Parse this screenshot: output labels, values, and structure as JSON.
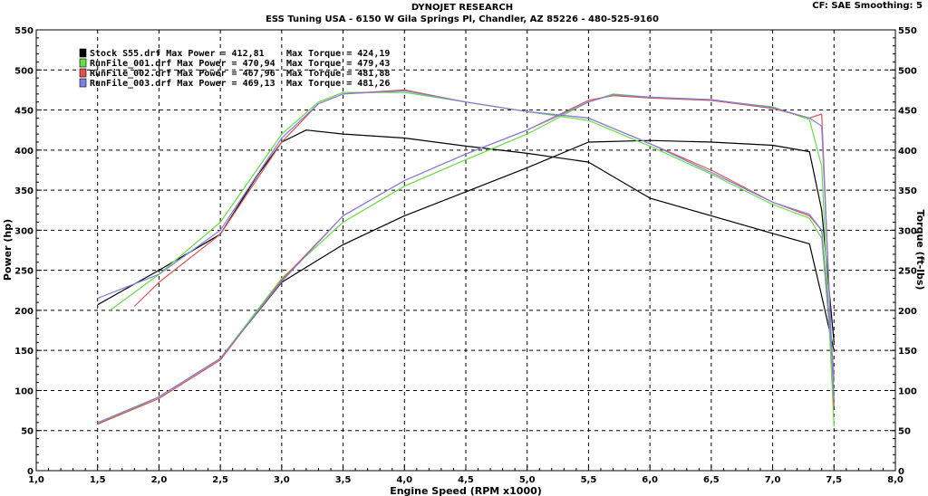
{
  "header": {
    "company": "DYNOJET RESEARCH",
    "shop": "ESS Tuning USA - 6150 W Gila Springs Pl, Chandler, AZ 85226 - 480-525-9160",
    "settings": "CF: SAE  Smoothing: 5"
  },
  "chart_data": {
    "type": "line",
    "title": "DYNOJET RESEARCH",
    "xlabel": "Engine Speed (RPM x1000)",
    "ylabel_left": "Power (hp)",
    "ylabel_right": "Torque (ft-lbs)",
    "xlim": [
      1.0,
      8.0
    ],
    "ylim": [
      0,
      550
    ],
    "xticks": [
      "1,0",
      "1,5",
      "2,0",
      "2,5",
      "3,0",
      "3,5",
      "4,0",
      "4,5",
      "5,0",
      "5,5",
      "6,0",
      "6,5",
      "7,0",
      "7,5",
      "8,0"
    ],
    "yticks": [
      "0",
      "50",
      "100",
      "150",
      "200",
      "250",
      "300",
      "350",
      "400",
      "450",
      "500",
      "550"
    ],
    "grid": true,
    "legend_position": "top-left",
    "legend": [
      {
        "file": "Stock S55.drf",
        "max_power": "412,81",
        "max_torque": "424,19",
        "color": "#000000"
      },
      {
        "file": "RunFile_001.drf",
        "max_power": "470,94",
        "max_torque": "479,43",
        "color": "#66dd44"
      },
      {
        "file": "RunFile_002.drf",
        "max_power": "467,96",
        "max_torque": "481,88",
        "color": "#e05050"
      },
      {
        "file": "RunFile_003.drf",
        "max_power": "469,13",
        "max_torque": "481,26",
        "color": "#8080e0"
      }
    ],
    "series": [
      {
        "name": "Stock S55.drf",
        "metric": "power",
        "color": "#000000",
        "x": [
          1.5,
          2.0,
          2.5,
          3.0,
          3.5,
          4.0,
          4.5,
          5.0,
          5.5,
          6.0,
          6.5,
          7.0,
          7.3,
          7.4,
          7.5
        ],
        "y": [
          58,
          92,
          140,
          235,
          282,
          318,
          348,
          378,
          410,
          412,
          410,
          406,
          398,
          325,
          160
        ]
      },
      {
        "name": "Stock S55.drf",
        "metric": "torque",
        "color": "#000000",
        "x": [
          1.5,
          2.0,
          2.5,
          2.8,
          3.0,
          3.2,
          3.5,
          4.0,
          4.5,
          5.0,
          5.5,
          6.0,
          6.5,
          7.0,
          7.3,
          7.4,
          7.5
        ],
        "y": [
          207,
          250,
          295,
          368,
          410,
          425,
          420,
          415,
          405,
          396,
          385,
          340,
          318,
          296,
          283,
          218,
          150
        ]
      },
      {
        "name": "RunFile_001.drf",
        "metric": "power",
        "color": "#66dd44",
        "x": [
          1.5,
          2.0,
          2.5,
          3.0,
          3.5,
          4.0,
          4.5,
          5.0,
          5.5,
          5.7,
          6.0,
          6.5,
          7.0,
          7.3,
          7.4,
          7.5
        ],
        "y": [
          58,
          92,
          140,
          240,
          310,
          355,
          388,
          420,
          460,
          470,
          466,
          462,
          454,
          438,
          380,
          55
        ]
      },
      {
        "name": "RunFile_001.drf",
        "metric": "torque",
        "color": "#66dd44",
        "x": [
          1.6,
          2.0,
          2.5,
          3.0,
          3.3,
          3.5,
          4.0,
          4.5,
          5.0,
          5.5,
          6.0,
          6.5,
          7.0,
          7.3,
          7.4,
          7.5
        ],
        "y": [
          200,
          245,
          310,
          420,
          460,
          472,
          472,
          460,
          448,
          437,
          405,
          370,
          332,
          315,
          290,
          110
        ]
      },
      {
        "name": "RunFile_002.drf",
        "metric": "power",
        "color": "#e05050",
        "x": [
          1.5,
          2.0,
          2.5,
          3.0,
          3.5,
          4.0,
          4.5,
          5.0,
          5.5,
          5.7,
          6.0,
          6.5,
          7.0,
          7.3,
          7.4,
          7.5
        ],
        "y": [
          58,
          90,
          138,
          238,
          318,
          362,
          395,
          425,
          462,
          468,
          465,
          462,
          452,
          440,
          445,
          80
        ]
      },
      {
        "name": "RunFile_002.drf",
        "metric": "torque",
        "color": "#e05050",
        "x": [
          1.8,
          2.0,
          2.5,
          3.0,
          3.3,
          3.5,
          4.0,
          4.5,
          5.0,
          5.5,
          6.0,
          6.5,
          7.0,
          7.3,
          7.4,
          7.5
        ],
        "y": [
          205,
          235,
          295,
          410,
          458,
          470,
          475,
          460,
          448,
          440,
          408,
          375,
          335,
          318,
          300,
          120
        ]
      },
      {
        "name": "RunFile_003.drf",
        "metric": "power",
        "color": "#8080e0",
        "x": [
          1.5,
          2.0,
          2.5,
          3.0,
          3.5,
          4.0,
          4.5,
          5.0,
          5.5,
          5.7,
          6.0,
          6.5,
          7.0,
          7.3,
          7.4,
          7.5
        ],
        "y": [
          60,
          92,
          140,
          236,
          318,
          362,
          395,
          425,
          460,
          469,
          466,
          463,
          453,
          440,
          430,
          90
        ]
      },
      {
        "name": "RunFile_003.drf",
        "metric": "torque",
        "color": "#8080e0",
        "x": [
          1.5,
          2.0,
          2.5,
          3.0,
          3.3,
          3.5,
          4.0,
          4.5,
          5.0,
          5.5,
          6.0,
          6.5,
          7.0,
          7.3,
          7.4,
          7.5
        ],
        "y": [
          215,
          245,
          300,
          415,
          458,
          470,
          474,
          460,
          448,
          440,
          408,
          372,
          335,
          320,
          300,
          115
        ]
      }
    ]
  }
}
